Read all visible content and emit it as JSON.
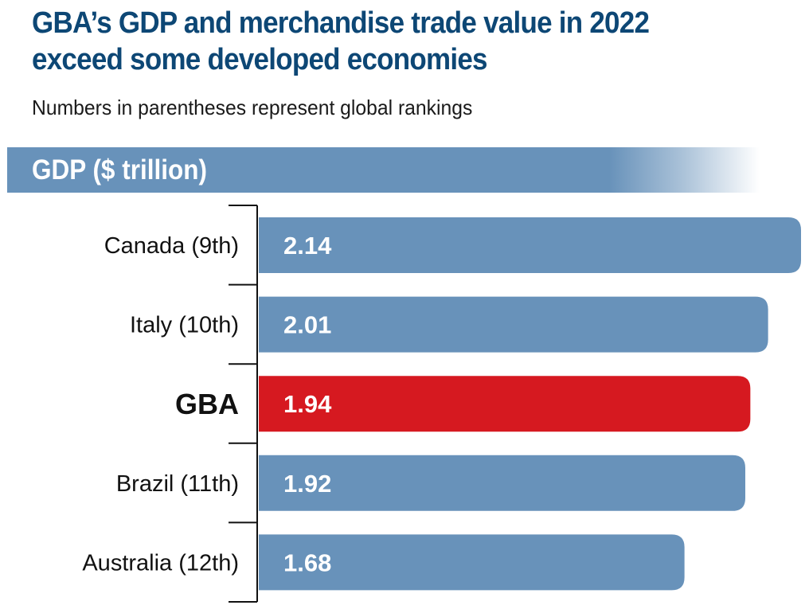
{
  "header": {
    "title": "GBA’s GDP and merchandise trade value in 2022 exceed some developed economies",
    "subtitle": "Numbers in parentheses represent global rankings"
  },
  "colors": {
    "title": "#0d4775",
    "bar_default": "#6892ba",
    "bar_highlight": "#d61920",
    "highlight_label": "#d61920",
    "axis": "#111111"
  },
  "chart_data": {
    "type": "bar",
    "orientation": "horizontal",
    "title": "GBA’s GDP and merchandise trade value in 2022 exceed some developed economies",
    "subtitle": "Numbers in parentheses represent global rankings",
    "section_label": "GDP ($ trillion)",
    "xlabel": "",
    "ylabel": "",
    "unit": "$ trillion",
    "categories": [
      "Canada (9th)",
      "Italy (10th)",
      "GBA",
      "Brazil (11th)",
      "Australia (12th)"
    ],
    "values": [
      2.14,
      2.01,
      1.94,
      1.92,
      1.68
    ],
    "value_labels": [
      "2.14",
      "2.01",
      "1.94",
      "1.92",
      "1.68"
    ],
    "highlight": "GBA",
    "highlight_index": 2,
    "xlim": [
      0,
      2.14
    ],
    "grid": false,
    "legend": "none"
  }
}
